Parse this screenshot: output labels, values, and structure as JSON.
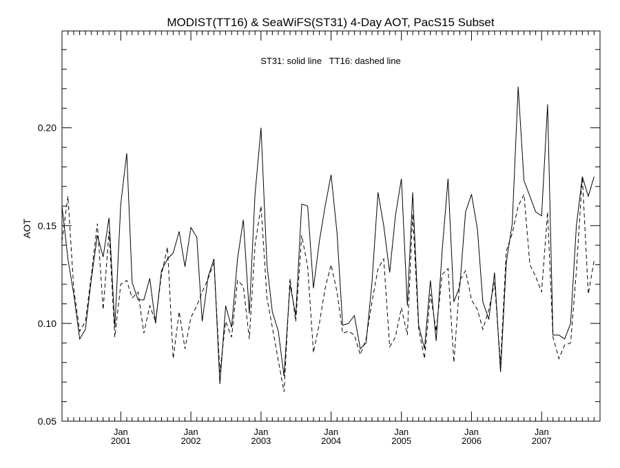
{
  "chart_data": {
    "type": "line",
    "title": "MODIST(TT16) & SeaWiFS(ST31) 4-Day AOT, PacS15 Subset",
    "annotation": "ST31: solid line   TT16: dashed line",
    "ylabel": "AOT",
    "xlabel": "",
    "ylim": [
      0.05,
      0.2495
    ],
    "xlim": [
      "2000-03-01",
      "2007-11-01"
    ],
    "y_major_ticks": [
      0.05,
      0.1,
      0.15,
      0.2
    ],
    "y_tick_labels": [
      "0.05",
      "0.10",
      "0.15",
      "0.20"
    ],
    "y_minor_step": 0.01,
    "x_ticks": [
      {
        "month": "Jan",
        "year": "2001",
        "date": "2001-01-01"
      },
      {
        "month": "Jan",
        "year": "2002",
        "date": "2002-01-01"
      },
      {
        "month": "Jan",
        "year": "2003",
        "date": "2003-01-01"
      },
      {
        "month": "Jan",
        "year": "2004",
        "date": "2004-01-01"
      },
      {
        "month": "Jan",
        "year": "2005",
        "date": "2005-01-01"
      },
      {
        "month": "Jan",
        "year": "2006",
        "date": "2006-01-01"
      },
      {
        "month": "Jan",
        "year": "2007",
        "date": "2007-01-01"
      }
    ],
    "grid": false,
    "legend": "none",
    "series": [
      {
        "name": "ST31",
        "style": "solid",
        "points": [
          [
            "2000-03-01",
            0.16
          ],
          [
            "2000-04-01",
            0.133
          ],
          [
            "2000-05-01",
            0.115
          ],
          [
            "2000-06-01",
            0.092
          ],
          [
            "2000-07-01",
            0.097
          ],
          [
            "2000-08-01",
            0.123
          ],
          [
            "2000-09-01",
            0.145
          ],
          [
            "2000-10-01",
            0.134
          ],
          [
            "2000-11-01",
            0.154
          ],
          [
            "2000-12-01",
            0.098
          ],
          [
            "2001-01-01",
            0.161
          ],
          [
            "2001-02-01",
            0.187
          ],
          [
            "2001-03-01",
            0.121
          ],
          [
            "2001-04-01",
            0.112
          ],
          [
            "2001-05-01",
            0.112
          ],
          [
            "2001-06-01",
            0.123
          ],
          [
            "2001-07-01",
            0.1
          ],
          [
            "2001-08-01",
            0.127
          ],
          [
            "2001-09-01",
            0.133
          ],
          [
            "2001-10-01",
            0.136
          ],
          [
            "2001-11-01",
            0.147
          ],
          [
            "2001-12-01",
            0.129
          ],
          [
            "2002-01-01",
            0.149
          ],
          [
            "2002-02-01",
            0.144
          ],
          [
            "2002-03-01",
            0.101
          ],
          [
            "2002-04-01",
            0.124
          ],
          [
            "2002-05-01",
            0.133
          ],
          [
            "2002-06-01",
            0.069
          ],
          [
            "2002-07-01",
            0.109
          ],
          [
            "2002-08-01",
            0.098
          ],
          [
            "2002-09-01",
            0.133
          ],
          [
            "2002-10-01",
            0.153
          ],
          [
            "2002-11-01",
            0.105
          ],
          [
            "2002-12-01",
            0.166
          ],
          [
            "2003-01-01",
            0.2
          ],
          [
            "2003-02-01",
            0.13
          ],
          [
            "2003-03-01",
            0.106
          ],
          [
            "2003-04-01",
            0.096
          ],
          [
            "2003-05-01",
            0.073
          ],
          [
            "2003-06-01",
            0.12
          ],
          [
            "2003-07-01",
            0.104
          ],
          [
            "2003-08-01",
            0.161
          ],
          [
            "2003-09-01",
            0.16
          ],
          [
            "2003-10-01",
            0.118
          ],
          [
            "2003-11-01",
            0.142
          ],
          [
            "2003-12-01",
            0.16
          ],
          [
            "2004-01-01",
            0.176
          ],
          [
            "2004-02-01",
            0.146
          ],
          [
            "2004-03-01",
            0.099
          ],
          [
            "2004-04-01",
            0.1
          ],
          [
            "2004-05-01",
            0.104
          ],
          [
            "2004-06-01",
            0.087
          ],
          [
            "2004-07-01",
            0.09
          ],
          [
            "2004-08-01",
            0.121
          ],
          [
            "2004-09-01",
            0.167
          ],
          [
            "2004-10-01",
            0.15
          ],
          [
            "2004-11-01",
            0.126
          ],
          [
            "2004-12-01",
            0.155
          ],
          [
            "2005-01-01",
            0.174
          ],
          [
            "2005-02-01",
            0.109
          ],
          [
            "2005-03-01",
            0.167
          ],
          [
            "2005-04-01",
            0.099
          ],
          [
            "2005-05-01",
            0.087
          ],
          [
            "2005-06-01",
            0.122
          ],
          [
            "2005-07-01",
            0.091
          ],
          [
            "2005-08-01",
            0.137
          ],
          [
            "2005-09-01",
            0.174
          ],
          [
            "2005-10-01",
            0.111
          ],
          [
            "2005-11-01",
            0.119
          ],
          [
            "2005-12-01",
            0.157
          ],
          [
            "2006-01-01",
            0.166
          ],
          [
            "2006-02-01",
            0.148
          ],
          [
            "2006-03-01",
            0.111
          ],
          [
            "2006-04-01",
            0.102
          ],
          [
            "2006-05-01",
            0.126
          ],
          [
            "2006-06-01",
            0.075
          ],
          [
            "2006-07-01",
            0.131
          ],
          [
            "2006-08-01",
            0.151
          ],
          [
            "2006-09-01",
            0.221
          ],
          [
            "2006-10-01",
            0.173
          ],
          [
            "2006-11-01",
            0.165
          ],
          [
            "2006-12-01",
            0.157
          ],
          [
            "2007-01-01",
            0.155
          ],
          [
            "2007-02-01",
            0.212
          ],
          [
            "2007-03-01",
            0.094
          ],
          [
            "2007-04-01",
            0.094
          ],
          [
            "2007-05-01",
            0.092
          ],
          [
            "2007-06-01",
            0.1
          ],
          [
            "2007-07-01",
            0.15
          ],
          [
            "2007-08-01",
            0.175
          ],
          [
            "2007-09-01",
            0.165
          ],
          [
            "2007-10-01",
            0.175
          ]
        ]
      },
      {
        "name": "TT16",
        "style": "dashed",
        "points": [
          [
            "2000-03-01",
            0.142
          ],
          [
            "2000-04-01",
            0.165
          ],
          [
            "2000-05-01",
            0.118
          ],
          [
            "2000-06-01",
            0.096
          ],
          [
            "2000-07-01",
            0.101
          ],
          [
            "2000-08-01",
            0.125
          ],
          [
            "2000-09-01",
            0.151
          ],
          [
            "2000-10-01",
            0.107
          ],
          [
            "2000-11-01",
            0.147
          ],
          [
            "2000-12-01",
            0.093
          ],
          [
            "2001-01-01",
            0.12
          ],
          [
            "2001-02-01",
            0.122
          ],
          [
            "2001-03-01",
            0.113
          ],
          [
            "2001-04-01",
            0.116
          ],
          [
            "2001-05-01",
            0.095
          ],
          [
            "2001-06-01",
            0.109
          ],
          [
            "2001-07-01",
            0.101
          ],
          [
            "2001-08-01",
            0.125
          ],
          [
            "2001-09-01",
            0.139
          ],
          [
            "2001-10-01",
            0.082
          ],
          [
            "2001-11-01",
            0.106
          ],
          [
            "2001-12-01",
            0.087
          ],
          [
            "2002-01-01",
            0.103
          ],
          [
            "2002-02-01",
            0.109
          ],
          [
            "2002-03-01",
            0.116
          ],
          [
            "2002-04-01",
            0.123
          ],
          [
            "2002-05-01",
            0.131
          ],
          [
            "2002-06-01",
            0.075
          ],
          [
            "2002-07-01",
            0.101
          ],
          [
            "2002-08-01",
            0.093
          ],
          [
            "2002-09-01",
            0.122
          ],
          [
            "2002-10-01",
            0.119
          ],
          [
            "2002-11-01",
            0.092
          ],
          [
            "2002-12-01",
            0.14
          ],
          [
            "2003-01-01",
            0.16
          ],
          [
            "2003-02-01",
            0.113
          ],
          [
            "2003-03-01",
            0.098
          ],
          [
            "2003-04-01",
            0.081
          ],
          [
            "2003-05-01",
            0.065
          ],
          [
            "2003-06-01",
            0.123
          ],
          [
            "2003-07-01",
            0.101
          ],
          [
            "2003-08-01",
            0.145
          ],
          [
            "2003-09-01",
            0.129
          ],
          [
            "2003-10-01",
            0.085
          ],
          [
            "2003-11-01",
            0.1
          ],
          [
            "2003-12-01",
            0.118
          ],
          [
            "2004-01-01",
            0.13
          ],
          [
            "2004-02-01",
            0.116
          ],
          [
            "2004-03-01",
            0.095
          ],
          [
            "2004-04-01",
            0.096
          ],
          [
            "2004-05-01",
            0.094
          ],
          [
            "2004-06-01",
            0.084
          ],
          [
            "2004-07-01",
            0.092
          ],
          [
            "2004-08-01",
            0.111
          ],
          [
            "2004-09-01",
            0.128
          ],
          [
            "2004-10-01",
            0.133
          ],
          [
            "2004-11-01",
            0.088
          ],
          [
            "2004-12-01",
            0.093
          ],
          [
            "2005-01-01",
            0.108
          ],
          [
            "2005-02-01",
            0.094
          ],
          [
            "2005-03-01",
            0.156
          ],
          [
            "2005-04-01",
            0.097
          ],
          [
            "2005-05-01",
            0.082
          ],
          [
            "2005-06-01",
            0.115
          ],
          [
            "2005-07-01",
            0.096
          ],
          [
            "2005-08-01",
            0.125
          ],
          [
            "2005-09-01",
            0.128
          ],
          [
            "2005-10-01",
            0.08
          ],
          [
            "2005-11-01",
            0.122
          ],
          [
            "2005-12-01",
            0.127
          ],
          [
            "2006-01-01",
            0.112
          ],
          [
            "2006-02-01",
            0.107
          ],
          [
            "2006-03-01",
            0.097
          ],
          [
            "2006-04-01",
            0.107
          ],
          [
            "2006-05-01",
            0.121
          ],
          [
            "2006-06-01",
            0.079
          ],
          [
            "2006-07-01",
            0.137
          ],
          [
            "2006-08-01",
            0.146
          ],
          [
            "2006-09-01",
            0.16
          ],
          [
            "2006-10-01",
            0.166
          ],
          [
            "2006-11-01",
            0.13
          ],
          [
            "2006-12-01",
            0.124
          ],
          [
            "2007-01-01",
            0.116
          ],
          [
            "2007-02-01",
            0.157
          ],
          [
            "2007-03-01",
            0.093
          ],
          [
            "2007-04-01",
            0.082
          ],
          [
            "2007-05-01",
            0.089
          ],
          [
            "2007-06-01",
            0.09
          ],
          [
            "2007-07-01",
            0.127
          ],
          [
            "2007-08-01",
            0.175
          ],
          [
            "2007-09-01",
            0.115
          ],
          [
            "2007-10-01",
            0.132
          ]
        ]
      }
    ]
  }
}
